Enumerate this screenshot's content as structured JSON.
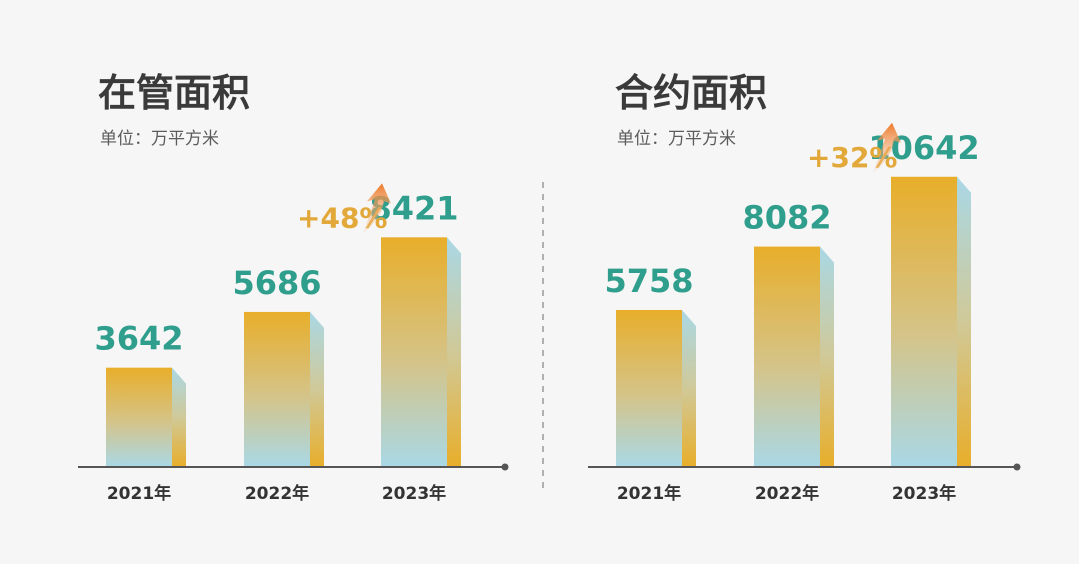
{
  "colors": {
    "bar_top": "#e8ae2a",
    "bar_bottom": "#a9d8e6",
    "value_text": "#2f9e8c",
    "growth_text": "#e2a93a",
    "arrow": "#ee7a2a",
    "axis": "#555555",
    "divider": "#b0b0b0"
  },
  "chart_data": [
    {
      "type": "bar",
      "title": "在管面积",
      "unit_label": "单位：万平方米",
      "categories": [
        "2021年",
        "2022年",
        "2023年"
      ],
      "values": [
        3642,
        5686,
        8421
      ],
      "ylim": [
        0,
        11000
      ],
      "growth": {
        "label": "+48%",
        "icon": "up-arrow-icon"
      }
    },
    {
      "type": "bar",
      "title": "合约面积",
      "unit_label": "单位：万平方米",
      "categories": [
        "2021年",
        "2022年",
        "2023年"
      ],
      "values": [
        5758,
        8082,
        10642
      ],
      "ylim": [
        0,
        11000
      ],
      "growth": {
        "label": "+32%",
        "icon": "up-arrow-icon"
      }
    }
  ]
}
